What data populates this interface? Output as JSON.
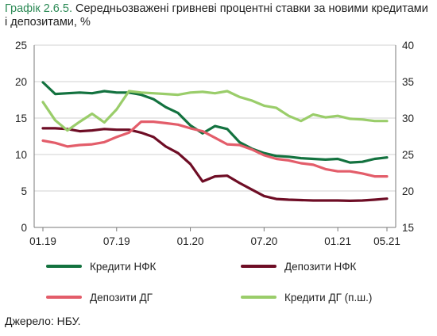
{
  "title_number": "Графік 2.6.5.",
  "title_text": "Середньозважені гривневі процентні ставки за новими кредитами і депозитами, %",
  "source": "Джерело: НБУ.",
  "chart_data": {
    "type": "line",
    "x": [
      "01.19",
      "02.19",
      "03.19",
      "04.19",
      "05.19",
      "06.19",
      "07.19",
      "08.19",
      "09.19",
      "10.19",
      "11.19",
      "12.19",
      "01.20",
      "02.20",
      "03.20",
      "04.20",
      "05.20",
      "06.20",
      "07.20",
      "08.20",
      "09.20",
      "10.20",
      "11.20",
      "12.20",
      "01.21",
      "02.21",
      "03.21",
      "04.21",
      "05.21"
    ],
    "x_tick_labels": [
      "01.19",
      "07.19",
      "01.20",
      "07.20",
      "01.21",
      "05.21"
    ],
    "ylim_left": [
      0,
      25
    ],
    "ylim_right": [
      15,
      40
    ],
    "yticks_left": [
      "0",
      "5",
      "10",
      "15",
      "20",
      "25"
    ],
    "yticks_right": [
      "15",
      "20",
      "25",
      "30",
      "35",
      "40"
    ],
    "grid": "horizontal",
    "legend_position": "bottom",
    "series": [
      {
        "name": "Кредити НФК",
        "axis": "left",
        "color": "#13723f",
        "values": [
          19.9,
          18.3,
          18.4,
          18.5,
          18.4,
          18.7,
          18.5,
          18.5,
          18.2,
          17.6,
          16.5,
          15.7,
          14.0,
          12.9,
          13.9,
          13.5,
          11.7,
          10.8,
          10.2,
          9.8,
          9.7,
          9.5,
          9.4,
          9.3,
          9.4,
          8.9,
          9.0,
          9.4,
          9.6
        ]
      },
      {
        "name": "Депозити НФК",
        "axis": "left",
        "color": "#6e0d25",
        "values": [
          13.6,
          13.6,
          13.5,
          13.2,
          13.3,
          13.5,
          13.4,
          13.4,
          13.0,
          12.4,
          11.1,
          10.2,
          8.7,
          6.3,
          7.0,
          7.1,
          6.1,
          5.2,
          4.3,
          3.9,
          3.8,
          3.75,
          3.7,
          3.7,
          3.7,
          3.65,
          3.7,
          3.8,
          3.95
        ]
      },
      {
        "name": "Депозити ДГ",
        "axis": "left",
        "color": "#e35d6a",
        "values": [
          11.9,
          11.6,
          11.1,
          11.3,
          11.4,
          11.7,
          12.4,
          13.0,
          14.5,
          14.5,
          14.3,
          14.1,
          13.6,
          13.2,
          12.3,
          11.4,
          11.3,
          10.7,
          9.9,
          9.4,
          9.2,
          8.8,
          8.6,
          8.0,
          7.7,
          7.7,
          7.4,
          7.0,
          7.0
        ]
      },
      {
        "name": "Кредити ДГ (п.ш.)",
        "axis": "right",
        "color": "#9acd6a",
        "values": [
          32.2,
          29.7,
          28.3,
          29.5,
          30.6,
          29.4,
          31.2,
          33.7,
          33.5,
          33.4,
          33.3,
          33.2,
          33.5,
          33.6,
          33.4,
          33.7,
          32.9,
          32.4,
          31.7,
          31.4,
          30.3,
          29.6,
          30.5,
          30.1,
          30.3,
          29.9,
          29.8,
          29.6,
          29.6
        ]
      }
    ]
  }
}
